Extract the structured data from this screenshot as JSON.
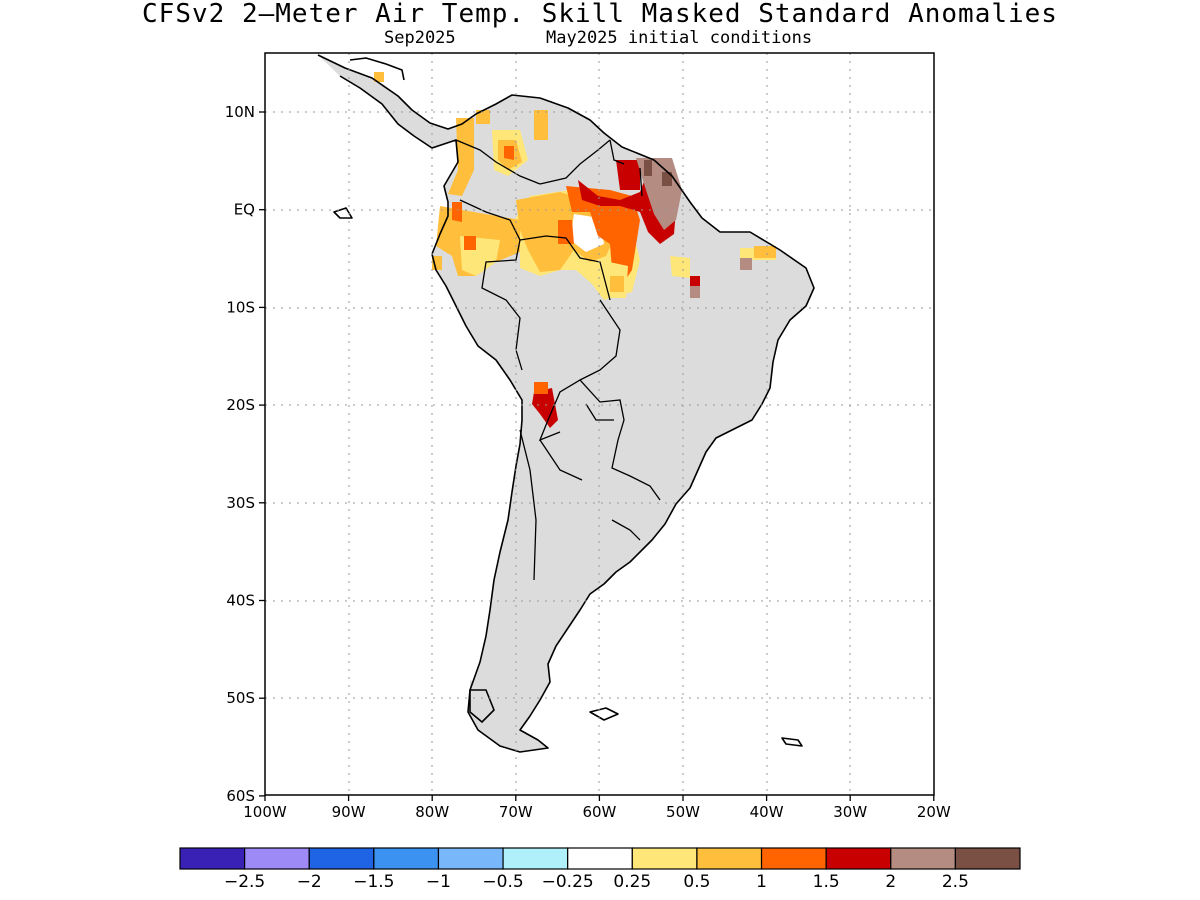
{
  "title": "CFSv2 2—Meter Air Temp. Skill Masked Standard Anomalies",
  "subtitle_left": "Sep2025",
  "subtitle_right": "May2025 initial conditions",
  "x_ticks": [
    "100W",
    "90W",
    "80W",
    "70W",
    "60W",
    "50W",
    "40W",
    "30W",
    "20W"
  ],
  "y_ticks": [
    "10N",
    "EQ",
    "10S",
    "20S",
    "30S",
    "40S",
    "50S",
    "60S"
  ],
  "colorbar": {
    "colors": [
      "#3a21b6",
      "#9e8af6",
      "#1e64e4",
      "#3c92f0",
      "#78b8fa",
      "#b0f0fa",
      "#ffffff",
      "#ffe678",
      "#ffbe3c",
      "#ff6400",
      "#c80000",
      "#b48c82",
      "#7a5044"
    ],
    "labels": [
      "−2.5",
      "−2",
      "−1.5",
      "−1",
      "−0.5",
      "−0.25",
      "0.25",
      "0.5",
      "1",
      "1.5",
      "2",
      "2.5"
    ]
  },
  "colors": {
    "land_mask": "#dcdcdc",
    "coast": "#000000",
    "grid": "#9a9a9a"
  }
}
